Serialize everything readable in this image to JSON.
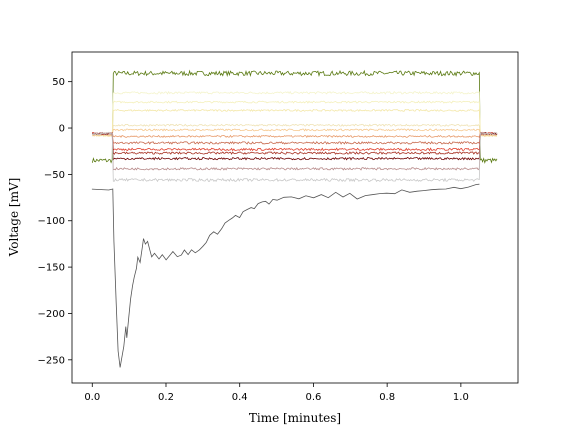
{
  "chart_data": {
    "type": "line",
    "title": "",
    "xlabel": "Time [minutes]",
    "ylabel": "Voltage [mV]",
    "xlim": [
      -0.055,
      1.155
    ],
    "ylim": [
      -275,
      82
    ],
    "xticks": [
      0.0,
      0.2,
      0.4,
      0.6,
      0.8,
      1.0
    ],
    "xtick_labels": [
      "0.0",
      "0.2",
      "0.4",
      "0.6",
      "0.8",
      "1.0"
    ],
    "yticks": [
      50,
      0,
      -50,
      -100,
      -150,
      -200,
      -250
    ],
    "ytick_labels": [
      "50",
      "0",
      "−50",
      "−100",
      "−150",
      "−200",
      "−250"
    ],
    "grid": false,
    "legend": "none",
    "stimulus": {
      "start": 0.057,
      "end": 1.052
    },
    "series": [
      {
        "color": "#5a7a12",
        "baseline": -35,
        "plateau": 59,
        "noise": 2.5
      },
      {
        "color": "#f4f4cc",
        "baseline": -8,
        "plateau": 38,
        "noise": 1.2
      },
      {
        "color": "#f4f0bc",
        "baseline": -8,
        "plateau": 28,
        "noise": 1.0
      },
      {
        "color": "#f3e7a8",
        "baseline": -8,
        "plateau": 19,
        "noise": 1.0
      },
      {
        "color": "#efe2b4",
        "baseline": -8,
        "plateau": 3,
        "noise": 1.0
      },
      {
        "color": "#f6c88e",
        "baseline": -8,
        "plateau": -2,
        "noise": 1.0
      },
      {
        "color": "#e79a6a",
        "baseline": -6,
        "plateau": -9,
        "noise": 1.0
      },
      {
        "color": "#c86a4e",
        "baseline": -6,
        "plateau": -16,
        "noise": 1.2
      },
      {
        "color": "#e0402e",
        "baseline": -6,
        "plateau": -23,
        "noise": 1.2
      },
      {
        "color": "#a83224",
        "baseline": -6,
        "plateau": -27,
        "noise": 1.2
      },
      {
        "color": "#6e0000",
        "baseline": -6,
        "plateau": -33,
        "noise": 1.2
      },
      {
        "color": "#b78a8a",
        "baseline": -6,
        "plateau": -44,
        "noise": 1.2
      },
      {
        "color": "#c8c8c8",
        "baseline": -6,
        "plateau": -56,
        "noise": 1.5
      },
      {
        "color": "#555555",
        "baseline": -67,
        "points": [
          [
            0.0,
            -67
          ],
          [
            0.045,
            -67
          ],
          [
            0.055,
            -67
          ],
          [
            0.06,
            -120
          ],
          [
            0.065,
            -190
          ],
          [
            0.07,
            -240
          ],
          [
            0.075,
            -258
          ],
          [
            0.08,
            -250
          ],
          [
            0.085,
            -235
          ],
          [
            0.09,
            -215
          ],
          [
            0.095,
            -225
          ],
          [
            0.1,
            -205
          ],
          [
            0.105,
            -185
          ],
          [
            0.11,
            -170
          ],
          [
            0.115,
            -160
          ],
          [
            0.12,
            -152
          ],
          [
            0.125,
            -140
          ],
          [
            0.13,
            -145
          ],
          [
            0.135,
            -128
          ],
          [
            0.14,
            -118
          ],
          [
            0.145,
            -125
          ],
          [
            0.15,
            -122
          ],
          [
            0.155,
            -130
          ],
          [
            0.16,
            -138
          ],
          [
            0.17,
            -135
          ],
          [
            0.18,
            -140
          ],
          [
            0.19,
            -136
          ],
          [
            0.2,
            -142
          ],
          [
            0.21,
            -138
          ],
          [
            0.22,
            -134
          ],
          [
            0.23,
            -140
          ],
          [
            0.24,
            -137
          ],
          [
            0.25,
            -133
          ],
          [
            0.26,
            -136
          ],
          [
            0.27,
            -131
          ],
          [
            0.28,
            -134
          ],
          [
            0.29,
            -130
          ],
          [
            0.3,
            -128
          ],
          [
            0.31,
            -122
          ],
          [
            0.32,
            -116
          ],
          [
            0.33,
            -112
          ],
          [
            0.34,
            -114
          ],
          [
            0.35,
            -108
          ],
          [
            0.36,
            -103
          ],
          [
            0.37,
            -100
          ],
          [
            0.38,
            -98
          ],
          [
            0.39,
            -94
          ],
          [
            0.4,
            -96
          ],
          [
            0.41,
            -90
          ],
          [
            0.42,
            -88
          ],
          [
            0.43,
            -85
          ],
          [
            0.44,
            -87
          ],
          [
            0.45,
            -82
          ],
          [
            0.46,
            -80
          ],
          [
            0.47,
            -78
          ],
          [
            0.48,
            -81
          ],
          [
            0.49,
            -77
          ],
          [
            0.5,
            -79
          ],
          [
            0.52,
            -76
          ],
          [
            0.54,
            -74
          ],
          [
            0.56,
            -77
          ],
          [
            0.58,
            -73
          ],
          [
            0.6,
            -74
          ],
          [
            0.62,
            -72
          ],
          [
            0.64,
            -75
          ],
          [
            0.66,
            -70
          ],
          [
            0.68,
            -73
          ],
          [
            0.7,
            -71
          ],
          [
            0.72,
            -78
          ],
          [
            0.74,
            -74
          ],
          [
            0.76,
            -72
          ],
          [
            0.78,
            -70
          ],
          [
            0.8,
            -69
          ],
          [
            0.82,
            -71
          ],
          [
            0.84,
            -68
          ],
          [
            0.86,
            -70
          ],
          [
            0.88,
            -67
          ],
          [
            0.9,
            -68
          ],
          [
            0.92,
            -66
          ],
          [
            0.94,
            -67
          ],
          [
            0.96,
            -65
          ],
          [
            0.98,
            -64
          ],
          [
            1.0,
            -65
          ],
          [
            1.02,
            -63
          ],
          [
            1.04,
            -62
          ],
          [
            1.05,
            -61
          ]
        ]
      }
    ]
  }
}
